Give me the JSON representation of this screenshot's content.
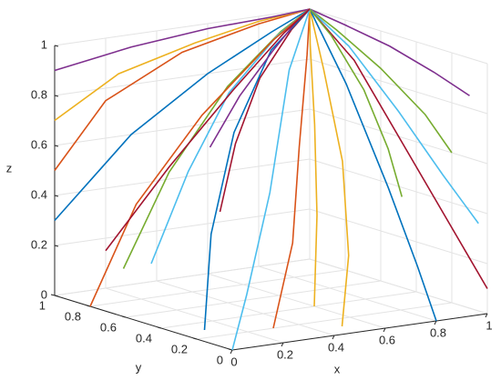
{
  "chart_data": {
    "type": "line3d",
    "xlabel": "x",
    "ylabel": "y",
    "zlabel": "z",
    "xlim": [
      0,
      1
    ],
    "ylim": [
      0,
      1
    ],
    "zlim": [
      0,
      1
    ],
    "xticks": [
      0,
      0.2,
      0.4,
      0.6,
      0.8,
      1
    ],
    "yticks": [
      0,
      0.2,
      0.4,
      0.6,
      0.8,
      1
    ],
    "zticks": [
      0,
      0.2,
      0.4,
      0.6,
      0.8,
      1
    ],
    "grid": true,
    "series": [
      {
        "color": "#0072BD",
        "x": [
          0,
          0.3,
          0.6,
          0.85,
          1
        ],
        "y": [
          1,
          1,
          1,
          1,
          1
        ],
        "z": [
          0.3,
          0.6,
          0.8,
          0.93,
          1
        ]
      },
      {
        "color": "#D95319",
        "x": [
          0,
          0.2,
          0.5,
          0.8,
          1
        ],
        "y": [
          1,
          1,
          1,
          1,
          1
        ],
        "z": [
          0.5,
          0.75,
          0.9,
          0.97,
          1
        ]
      },
      {
        "color": "#EDB120",
        "x": [
          0,
          0.25,
          0.55,
          0.8,
          1
        ],
        "y": [
          1,
          1,
          1,
          1,
          1
        ],
        "z": [
          0.7,
          0.85,
          0.93,
          0.98,
          1
        ]
      },
      {
        "color": "#7E2F8E",
        "x": [
          0,
          0.3,
          0.6,
          0.85,
          1
        ],
        "y": [
          1,
          1,
          1,
          1,
          1
        ],
        "z": [
          0.9,
          0.95,
          0.98,
          0.99,
          1
        ]
      },
      {
        "color": "#77AC30",
        "x": [
          0.2,
          0.4,
          0.65,
          0.88,
          1
        ],
        "y": [
          0.9,
          0.93,
          0.96,
          0.99,
          1
        ],
        "z": [
          0.1,
          0.45,
          0.75,
          0.93,
          1
        ]
      },
      {
        "color": "#4DBEEE",
        "x": [
          0.1,
          0.35,
          0.6,
          0.85,
          1
        ],
        "y": [
          0.6,
          0.75,
          0.88,
          0.97,
          1
        ],
        "z": [
          0.2,
          0.5,
          0.75,
          0.92,
          1
        ]
      },
      {
        "color": "#A2142F",
        "x": [
          0.3,
          0.5,
          0.7,
          0.9,
          1
        ],
        "y": [
          0.5,
          0.7,
          0.85,
          0.96,
          1
        ],
        "z": [
          0.4,
          0.6,
          0.8,
          0.94,
          1
        ]
      },
      {
        "color": "#0072BD",
        "x": [
          0.1,
          0.3,
          0.55,
          0.8,
          1
        ],
        "y": [
          0.3,
          0.55,
          0.78,
          0.93,
          1
        ],
        "z": [
          0,
          0.3,
          0.62,
          0.88,
          1
        ]
      },
      {
        "color": "#D95319",
        "x": [
          0.3,
          0.55,
          0.75,
          0.92,
          1
        ],
        "y": [
          0.2,
          0.45,
          0.7,
          0.9,
          1
        ],
        "z": [
          0,
          0.25,
          0.55,
          0.85,
          1
        ]
      },
      {
        "color": "#EDB120",
        "x": [
          0.5,
          0.7,
          0.85,
          0.95,
          1
        ],
        "y": [
          0.1,
          0.35,
          0.6,
          0.85,
          1
        ],
        "z": [
          0,
          0.2,
          0.5,
          0.8,
          1
        ]
      },
      {
        "color": "#7E2F8E",
        "x": [
          1,
          1,
          1,
          1,
          1
        ],
        "y": [
          0.1,
          0.3,
          0.55,
          0.8,
          1
        ],
        "z": [
          0.85,
          0.9,
          0.95,
          0.98,
          1
        ]
      },
      {
        "color": "#77AC30",
        "x": [
          1,
          1,
          1,
          1,
          1
        ],
        "y": [
          0.2,
          0.35,
          0.6,
          0.85,
          1
        ],
        "z": [
          0.6,
          0.72,
          0.85,
          0.95,
          1
        ]
      },
      {
        "color": "#4DBEEE",
        "x": [
          1,
          1,
          1,
          1,
          1
        ],
        "y": [
          0.05,
          0.25,
          0.5,
          0.78,
          1
        ],
        "z": [
          0.35,
          0.5,
          0.7,
          0.9,
          1
        ]
      },
      {
        "color": "#A2142F",
        "x": [
          1,
          1,
          1,
          1,
          1
        ],
        "y": [
          0,
          0.2,
          0.45,
          0.75,
          1
        ],
        "z": [
          0.1,
          0.3,
          0.55,
          0.85,
          1
        ]
      },
      {
        "color": "#0072BD",
        "x": [
          0.8,
          0.9,
          0.96,
          0.99,
          1
        ],
        "y": [
          0,
          0.25,
          0.5,
          0.78,
          1
        ],
        "z": [
          0,
          0.15,
          0.4,
          0.75,
          1
        ]
      },
      {
        "color": "#D95319",
        "x": [
          0,
          0.25,
          0.55,
          0.85,
          1
        ],
        "y": [
          0.8,
          0.9,
          0.96,
          0.99,
          1
        ],
        "z": [
          0,
          0.35,
          0.65,
          0.9,
          1
        ]
      },
      {
        "color": "#EDB120",
        "x": [
          0.6,
          0.75,
          0.88,
          0.96,
          1
        ],
        "y": [
          0.4,
          0.6,
          0.8,
          0.94,
          1
        ],
        "z": [
          0,
          0.3,
          0.6,
          0.88,
          1
        ]
      },
      {
        "color": "#7E2F8E",
        "x": [
          0.4,
          0.6,
          0.8,
          0.93,
          1
        ],
        "y": [
          0.7,
          0.82,
          0.92,
          0.98,
          1
        ],
        "z": [
          0.6,
          0.75,
          0.88,
          0.96,
          1
        ]
      },
      {
        "color": "#77AC30",
        "x": [
          0.7,
          0.82,
          0.92,
          0.98,
          1
        ],
        "y": [
          0.05,
          0.3,
          0.58,
          0.85,
          1
        ],
        "z": [
          0.5,
          0.62,
          0.78,
          0.93,
          1
        ]
      },
      {
        "color": "#4DBEEE",
        "x": [
          0,
          0.3,
          0.6,
          0.85,
          1
        ],
        "y": [
          0,
          0.35,
          0.65,
          0.9,
          1
        ],
        "z": [
          0,
          0.1,
          0.4,
          0.8,
          1
        ]
      },
      {
        "color": "#A2142F",
        "x": [
          0.2,
          0.45,
          0.7,
          0.9,
          1
        ],
        "y": [
          1,
          1,
          1,
          1,
          1
        ],
        "z": [
          0.15,
          0.45,
          0.72,
          0.92,
          1
        ]
      }
    ]
  }
}
